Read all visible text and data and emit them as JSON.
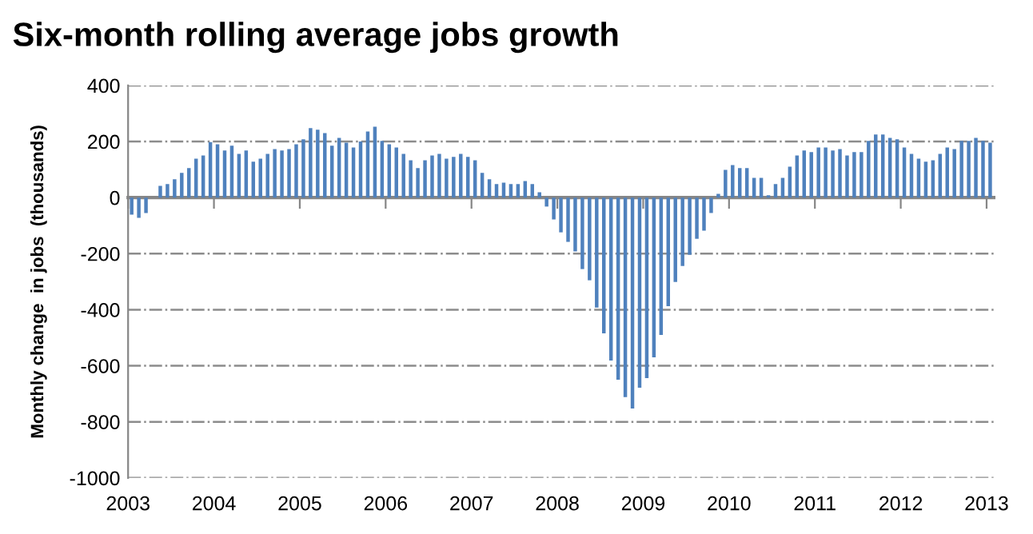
{
  "chart_data": {
    "type": "bar",
    "title": "Six-month rolling average jobs growth",
    "ylabel": "Monthly change  in jobs  (thousands)",
    "x": [
      "2003-01",
      "2003-02",
      "2003-03",
      "2003-04",
      "2003-05",
      "2003-06",
      "2003-07",
      "2003-08",
      "2003-09",
      "2003-10",
      "2003-11",
      "2003-12",
      "2004-01",
      "2004-02",
      "2004-03",
      "2004-04",
      "2004-05",
      "2004-06",
      "2004-07",
      "2004-08",
      "2004-09",
      "2004-10",
      "2004-11",
      "2004-12",
      "2005-01",
      "2005-02",
      "2005-03",
      "2005-04",
      "2005-05",
      "2005-06",
      "2005-07",
      "2005-08",
      "2005-09",
      "2005-10",
      "2005-11",
      "2005-12",
      "2006-01",
      "2006-02",
      "2006-03",
      "2006-04",
      "2006-05",
      "2006-06",
      "2006-07",
      "2006-08",
      "2006-09",
      "2006-10",
      "2006-11",
      "2006-12",
      "2007-01",
      "2007-02",
      "2007-03",
      "2007-04",
      "2007-05",
      "2007-06",
      "2007-07",
      "2007-08",
      "2007-09",
      "2007-10",
      "2007-11",
      "2007-12",
      "2008-01",
      "2008-02",
      "2008-03",
      "2008-04",
      "2008-05",
      "2008-06",
      "2008-07",
      "2008-08",
      "2008-09",
      "2008-10",
      "2008-11",
      "2008-12",
      "2009-01",
      "2009-02",
      "2009-03",
      "2009-04",
      "2009-05",
      "2009-06",
      "2009-07",
      "2009-08",
      "2009-09",
      "2009-10",
      "2009-11",
      "2009-12",
      "2010-01",
      "2010-02",
      "2010-03",
      "2010-04",
      "2010-05",
      "2010-06",
      "2010-07",
      "2010-08",
      "2010-09",
      "2010-10",
      "2010-11",
      "2010-12",
      "2011-01",
      "2011-02",
      "2011-03",
      "2011-04",
      "2011-05",
      "2011-06",
      "2011-07",
      "2011-08",
      "2011-09",
      "2011-10",
      "2011-11",
      "2011-12",
      "2012-01",
      "2012-02",
      "2012-03",
      "2012-04",
      "2012-05",
      "2012-06",
      "2012-07",
      "2012-08",
      "2012-09",
      "2012-10",
      "2012-11",
      "2012-12",
      "2013-01"
    ],
    "values": [
      -61,
      -72,
      -55,
      0,
      42,
      48,
      65,
      88,
      105,
      139,
      150,
      198,
      190,
      168,
      185,
      156,
      168,
      128,
      139,
      156,
      173,
      168,
      173,
      190,
      208,
      248,
      242,
      230,
      185,
      213,
      196,
      179,
      200,
      236,
      253,
      202,
      190,
      179,
      156,
      133,
      105,
      133,
      150,
      156,
      139,
      145,
      156,
      145,
      133,
      88,
      65,
      48,
      53,
      48,
      48,
      59,
      48,
      19,
      -32,
      -78,
      -124,
      -158,
      -192,
      -255,
      -295,
      -392,
      -484,
      -581,
      -650,
      -712,
      -752,
      -678,
      -644,
      -570,
      -490,
      -387,
      -301,
      -244,
      -204,
      -147,
      -118,
      -55,
      13,
      99,
      116,
      105,
      105,
      70,
      70,
      8,
      48,
      70,
      110,
      150,
      168,
      162,
      179,
      179,
      168,
      173,
      150,
      162,
      162,
      202,
      225,
      225,
      213,
      208,
      179,
      156,
      139,
      128,
      133,
      156,
      179,
      173,
      202,
      202,
      213,
      202,
      196
    ],
    "color": "#4f81bd",
    "xlim": [
      "2003",
      "2013-02"
    ],
    "xticks": [
      "2003",
      "2004",
      "2005",
      "2006",
      "2007",
      "2008",
      "2009",
      "2010",
      "2011",
      "2012",
      "2013"
    ],
    "ylim": [
      -1000,
      400
    ],
    "yticks": [
      -1000,
      -800,
      -600,
      -400,
      -200,
      0,
      200,
      400
    ],
    "grid": "y",
    "legend": false
  }
}
